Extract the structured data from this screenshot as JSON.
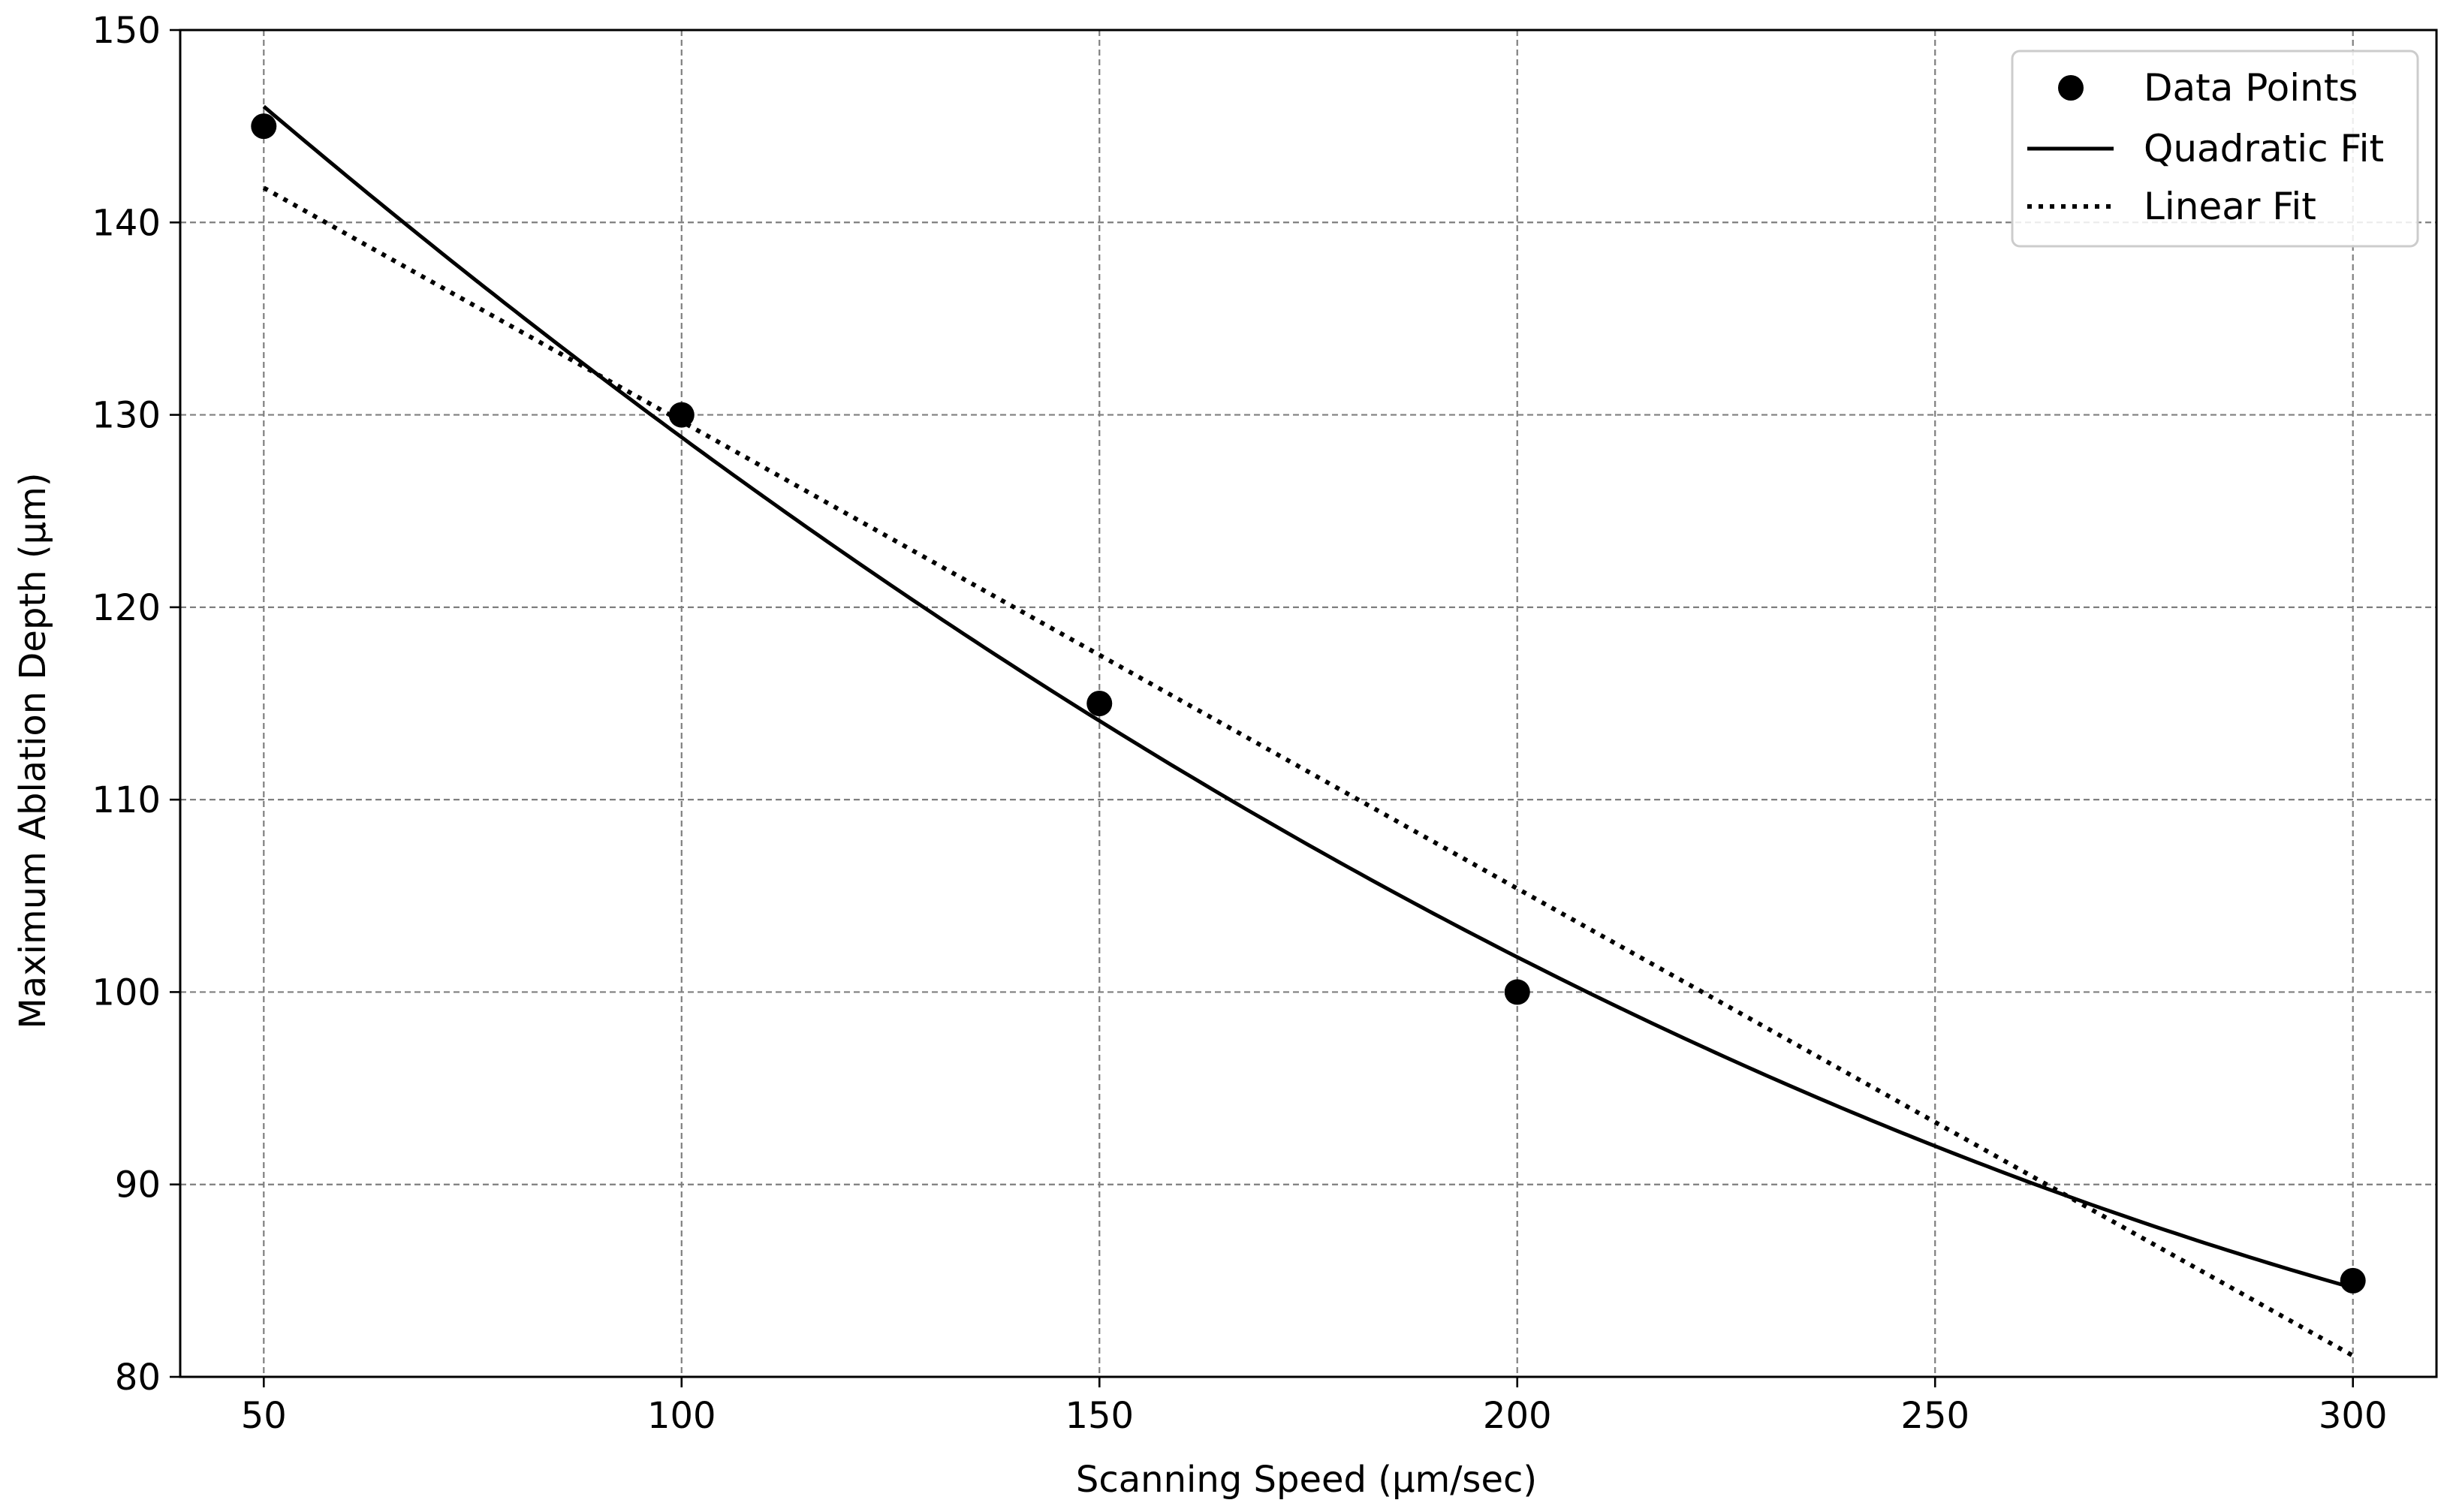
{
  "chart_data": {
    "type": "scatter",
    "title": "",
    "xlabel": "Scanning Speed (µm/sec)",
    "ylabel": "Maximum Ablation Depth (µm)",
    "xlim": [
      40,
      310
    ],
    "ylim": [
      80,
      150
    ],
    "xticks": [
      50,
      100,
      150,
      200,
      250,
      300
    ],
    "yticks": [
      80,
      90,
      100,
      110,
      120,
      130,
      140,
      150
    ],
    "xtick_labels": [
      "50",
      "100",
      "150",
      "200",
      "250",
      "300"
    ],
    "ytick_labels": [
      "80",
      "90",
      "100",
      "110",
      "120",
      "130",
      "140",
      "150"
    ],
    "grid": true,
    "legend_position": "top-right",
    "series": [
      {
        "name": "Data Points",
        "kind": "scatter",
        "x": [
          50,
          100,
          150,
          200,
          300
        ],
        "y": [
          145,
          130,
          115,
          100,
          85
        ]
      },
      {
        "name": "Quadratic Fit",
        "kind": "line",
        "style": "solid",
        "x": [
          50,
          100,
          150,
          200,
          250,
          300
        ],
        "y": [
          146,
          128.9,
          114.1,
          101.7,
          92.1,
          84.6
        ]
      },
      {
        "name": "Linear Fit",
        "kind": "line",
        "style": "dotted",
        "x": [
          50,
          300
        ],
        "y": [
          141.8,
          81.1
        ]
      }
    ],
    "colors": {
      "markers": "#000000",
      "lines": "#000000",
      "grid": "#7f7f7f",
      "background": "#ffffff"
    }
  }
}
